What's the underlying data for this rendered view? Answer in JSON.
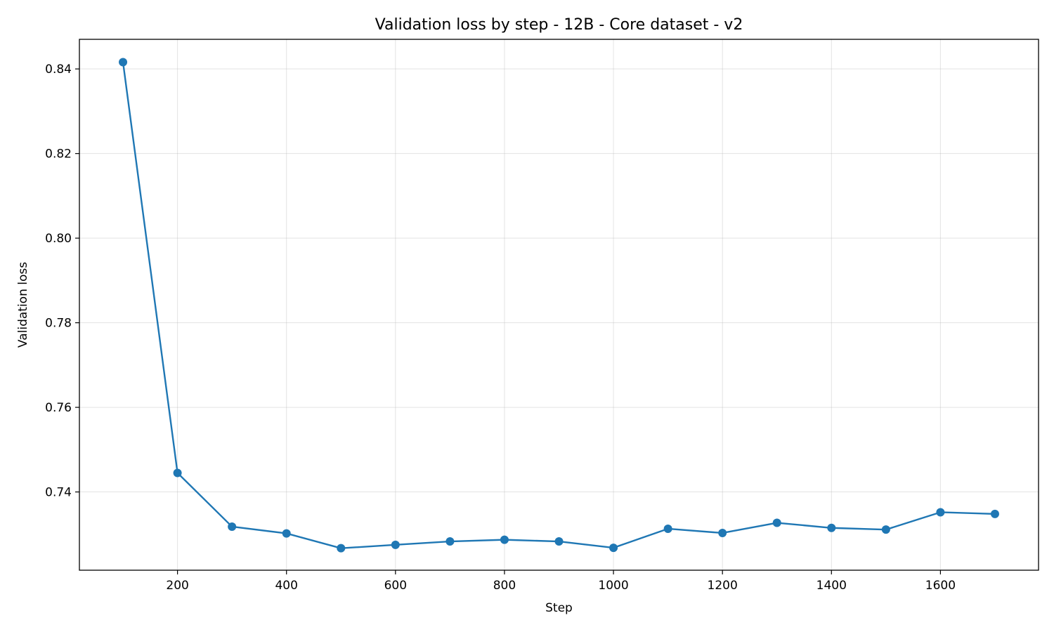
{
  "chart_data": {
    "type": "line",
    "title": "Validation loss by step - 12B - Core dataset - v2",
    "xlabel": "Step",
    "ylabel": "Validation loss",
    "xlim": [
      20,
      1780
    ],
    "ylim": [
      0.7215,
      0.847
    ],
    "xticks": [
      200,
      400,
      600,
      800,
      1000,
      1200,
      1400,
      1600
    ],
    "yticks": [
      0.74,
      0.76,
      0.78,
      0.8,
      0.82,
      0.84
    ],
    "ytick_labels": [
      "0.74",
      "0.76",
      "0.78",
      "0.80",
      "0.82",
      "0.84"
    ],
    "grid": true,
    "series": [
      {
        "color": "#1f77b4",
        "marker": "circle",
        "x": [
          100,
          200,
          300,
          400,
          500,
          600,
          700,
          800,
          900,
          1000,
          1100,
          1200,
          1300,
          1400,
          1500,
          1600,
          1700
        ],
        "y": [
          0.8416,
          0.7445,
          0.7318,
          0.7302,
          0.7267,
          0.7275,
          0.7283,
          0.7287,
          0.7283,
          0.7268,
          0.7313,
          0.7303,
          0.7327,
          0.7315,
          0.7311,
          0.7352,
          0.7348
        ]
      }
    ]
  }
}
